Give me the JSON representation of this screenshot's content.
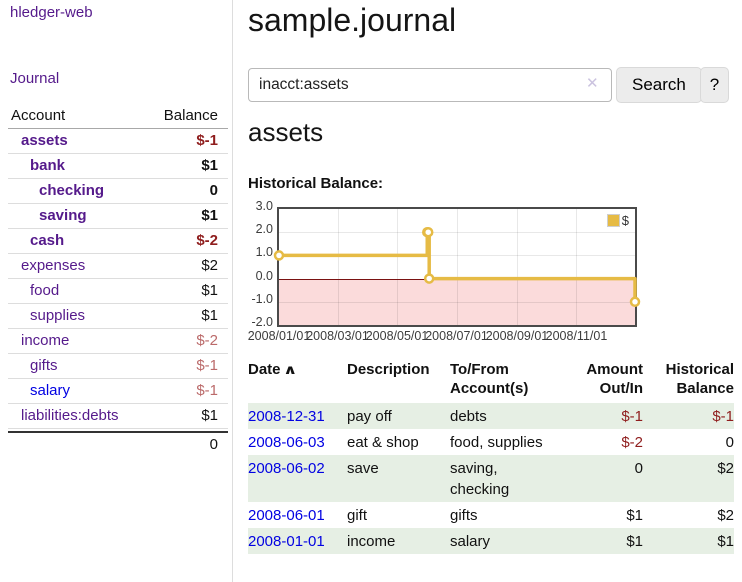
{
  "sidebar": {
    "brand": "hledger-web",
    "nav": {
      "journal": "Journal"
    },
    "accounts_table": {
      "headers": {
        "account": "Account",
        "balance": "Balance"
      },
      "rows": [
        {
          "name": "assets",
          "level": 1,
          "bold": true,
          "link_color": "purple",
          "balance": "$-1",
          "balance_style": "neg-bold"
        },
        {
          "name": "bank",
          "level": 2,
          "bold": true,
          "link_color": "purple",
          "balance": "$1",
          "balance_style": "bold"
        },
        {
          "name": "checking",
          "level": 3,
          "bold": true,
          "link_color": "purple",
          "balance": "0",
          "balance_style": "bold"
        },
        {
          "name": "saving",
          "level": 3,
          "bold": true,
          "link_color": "purple",
          "balance": "$1",
          "balance_style": "bold"
        },
        {
          "name": "cash",
          "level": 2,
          "bold": true,
          "link_color": "purple",
          "balance": "$-2",
          "balance_style": "neg-bold"
        },
        {
          "name": "expenses",
          "level": 1,
          "bold": false,
          "link_color": "purple",
          "balance": "$2",
          "balance_style": "normal"
        },
        {
          "name": "food",
          "level": 2,
          "bold": false,
          "link_color": "purple",
          "balance": "$1",
          "balance_style": "normal"
        },
        {
          "name": "supplies",
          "level": 2,
          "bold": false,
          "link_color": "purple",
          "balance": "$1",
          "balance_style": "normal"
        },
        {
          "name": "income",
          "level": 1,
          "bold": false,
          "link_color": "purple",
          "balance": "$-2",
          "balance_style": "neg-light"
        },
        {
          "name": "gifts",
          "level": 2,
          "bold": false,
          "link_color": "purple",
          "balance": "$-1",
          "balance_style": "neg-light"
        },
        {
          "name": "salary",
          "level": 2,
          "bold": false,
          "link_color": "blue",
          "balance": "$-1",
          "balance_style": "neg-light"
        },
        {
          "name": "liabilities:debts",
          "level": 1,
          "bold": false,
          "link_color": "purple",
          "balance": "$1",
          "balance_style": "normal"
        }
      ],
      "total": "0"
    }
  },
  "header": {
    "title": "sample.journal"
  },
  "search": {
    "value": "inacct:assets",
    "clear_icon": "✕",
    "button": "Search",
    "help_button": "?"
  },
  "account_page": {
    "title": "assets",
    "chart_label": "Historical Balance:"
  },
  "chart_data": {
    "type": "line",
    "step": true,
    "title": "Historical Balance",
    "series": [
      {
        "name": "$",
        "color": "#E6BB45",
        "points": [
          [
            "2008-01-01",
            1
          ],
          [
            "2008-06-01",
            2
          ],
          [
            "2008-06-02",
            2
          ],
          [
            "2008-06-03",
            0
          ],
          [
            "2008-12-31",
            -1
          ]
        ]
      }
    ],
    "xlim": [
      "2008-01-01",
      "2008-12-31"
    ],
    "ylim": [
      -2,
      3
    ],
    "yticks": [
      3,
      2,
      1,
      0,
      -1,
      -2
    ],
    "ytick_labels": [
      "3.0",
      "2.0",
      "1.0",
      "0.0",
      "-1.0",
      "-2.0"
    ],
    "xticks": [
      "2008-01-01",
      "2008-03-01",
      "2008-05-01",
      "2008-07-01",
      "2008-09-01",
      "2008-11-01"
    ],
    "xtick_labels": [
      "2008/01/01",
      "2008/03/01",
      "2008/05/01",
      "2008/07/01",
      "2008/09/01",
      "2008/11/01"
    ],
    "legend": {
      "position": "top-right",
      "label": "$"
    },
    "grid": true,
    "negative_region_color": "#fbdbdb",
    "zero_line_color": "#7a1212"
  },
  "register": {
    "headers": {
      "date": "Date",
      "sort_icon": "∧",
      "description": "Description",
      "accounts": "To/From Account(s)",
      "amount": "Amount Out/In",
      "balance": "Historical Balance"
    },
    "rows": [
      {
        "date": "2008-12-31",
        "description": "pay off",
        "accounts": "debts",
        "amount": "$-1",
        "balance": "$-1"
      },
      {
        "date": "2008-06-03",
        "description": "eat & shop",
        "accounts": "food, supplies",
        "amount": "$-2",
        "balance": "0"
      },
      {
        "date": "2008-06-02",
        "description": "save",
        "accounts": "saving, checking",
        "amount": "0",
        "balance": "$2"
      },
      {
        "date": "2008-06-01",
        "description": "gift",
        "accounts": "gifts",
        "amount": "$1",
        "balance": "$2"
      },
      {
        "date": "2008-01-01",
        "description": "income",
        "accounts": "salary",
        "amount": "$1",
        "balance": "$1"
      }
    ]
  },
  "colors": {
    "link_purple": "#551A8B",
    "link_blue": "#0202E2",
    "neg_dark": "#8f1d1d",
    "neg_light": "#bb6a6a",
    "row_green": "#e6efe4"
  }
}
